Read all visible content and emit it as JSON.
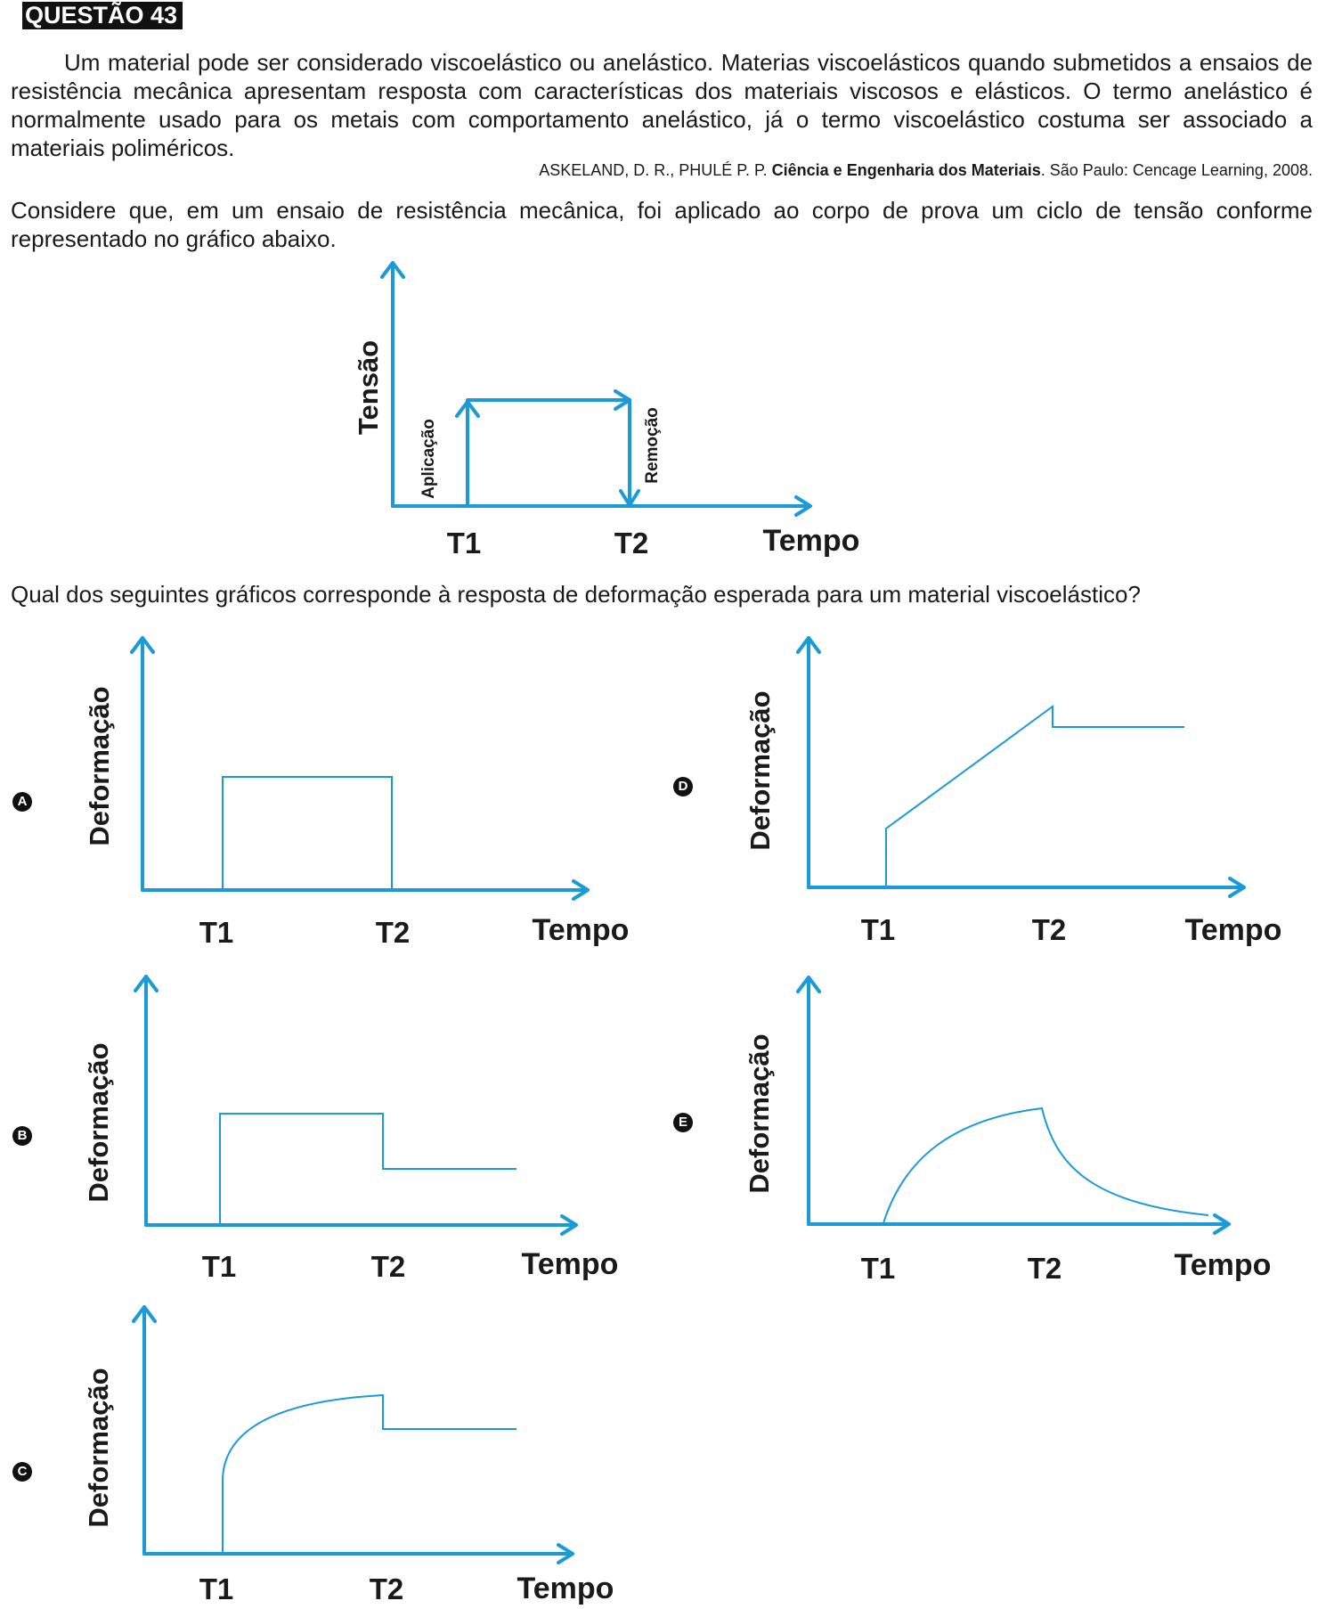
{
  "header": {
    "label": "QUESTÃO 43"
  },
  "intro_paragraph": "Um material pode ser considerado viscoelástico ou anelástico. Materias viscoelásticos quando submetidos a ensaios de resistência mecânica apresentam resposta com características dos materiais viscosos e elásticos. O termo anelástico é normalmente usado para os metais com comportamento anelástico, já o termo viscoelástico costuma ser associado a materiais poliméricos.",
  "citation": {
    "authors": "ASKELAND, D. R., PHULÉ P. P. ",
    "title": "Ciência e Engenharia dos Materiais",
    "publication": ". São Paulo: Cencage Learning, 2008."
  },
  "context_paragraph": "Considere que, em um ensaio de resistência mecânica, foi aplicado ao corpo de prova um ciclo de tensão conforme representado no gráfico abaixo.",
  "question_text": "Qual dos seguintes gráficos corresponde à resposta de deformação esperada para um material viscoelástico?",
  "stress_graph": {
    "y_label": "Tensão",
    "x_label": "Tempo",
    "t1_label": "T1",
    "t2_label": "T2",
    "apply_label": "Aplicação",
    "remove_label": "Remoção"
  },
  "options_common": {
    "y_label": "Deformação",
    "x_label": "Tempo",
    "t1_label": "T1",
    "t2_label": "T2"
  },
  "options": [
    {
      "letter": "A"
    },
    {
      "letter": "B"
    },
    {
      "letter": "C"
    },
    {
      "letter": "D"
    },
    {
      "letter": "E"
    }
  ],
  "colors": {
    "axis": "#1a9ad9",
    "text": "#1a1a1a",
    "badge": "#111111"
  }
}
